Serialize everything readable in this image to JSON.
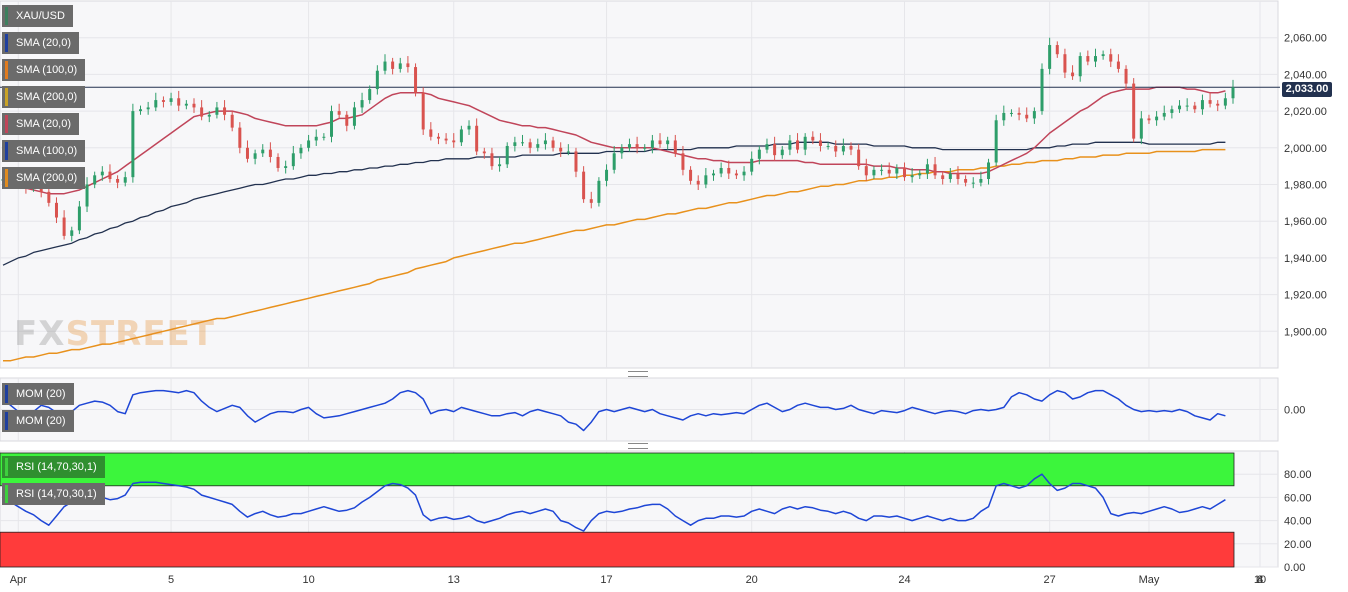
{
  "chart_data": [
    {
      "panel": "price",
      "type": "candlestick",
      "symbol": "XAU/USD",
      "ylim": [
        1880,
        2080
      ],
      "yticks": [
        1900,
        1920,
        1940,
        1960,
        1980,
        2000,
        2020,
        2040,
        2060
      ],
      "ytick_labels": [
        "1,900.00",
        "1,920.00",
        "1,940.00",
        "1,960.00",
        "1,980.00",
        "2,000.00",
        "2,020.00",
        "2,040.00",
        "2,060.00"
      ],
      "current_price": 2033.0,
      "current_price_label": "2,033.00",
      "x_labels": [
        "Apr",
        "5",
        "10",
        "13",
        "17",
        "20",
        "24",
        "27",
        "May",
        "4",
        "8",
        "10"
      ],
      "series": [
        {
          "name": "XAU/USD",
          "close": [
            1983,
            1985,
            1980,
            1978,
            1981,
            1976,
            1970,
            1962,
            1952,
            1955,
            1968,
            1980,
            1985,
            1987,
            1983,
            1981,
            1984,
            2020,
            2021,
            2022,
            2026,
            2025,
            2027,
            2023,
            2024,
            2022,
            2017,
            2018,
            2022,
            2018,
            2011,
            2000,
            1994,
            1997,
            1999,
            1995,
            1989,
            1990,
            1997,
            2000,
            2004,
            2006,
            2006,
            2020,
            2018,
            2012,
            2022,
            2026,
            2032,
            2042,
            2047,
            2043,
            2046,
            2044,
            2030,
            2010,
            2006,
            2005,
            2004,
            2003,
            2010,
            2012,
            1998,
            1997,
            1990,
            1991,
            2001,
            2003,
            2003,
            2000,
            2002,
            2004,
            2000,
            1998,
            1998,
            1987,
            1972,
            1970,
            1982,
            1988,
            1997,
            2000,
            2002,
            2000,
            2000,
            2004,
            2002,
            2004,
            1997,
            1988,
            1982,
            1980,
            1985,
            1986,
            1989,
            1986,
            1985,
            1987,
            1994,
            1999,
            2002,
            1996,
            1999,
            2004,
            1999,
            2006,
            2004,
            2001,
            2001,
            1998,
            2001,
            1999,
            1990,
            1985,
            1988,
            1988,
            1986,
            1989,
            1984,
            1985,
            1986,
            1991,
            1985,
            1983,
            1986,
            1983,
            1981,
            1981,
            1983,
            1992,
            2015,
            2019,
            2019,
            2018,
            2016,
            2020,
            2043,
            2056,
            2051,
            2041,
            2039,
            2050,
            2047,
            2050,
            2051,
            2047,
            2043,
            2035,
            2005,
            2016,
            2015,
            2017,
            2019,
            2021,
            2023,
            2023,
            2021,
            2026,
            2024,
            2023,
            2027,
            2033
          ]
        },
        {
          "name": "SMA (20,0)",
          "values": [
            1981,
            1980,
            1979,
            1978,
            1977,
            1976,
            1975,
            1975,
            1975,
            1976,
            1977,
            1979,
            1981,
            1983,
            1985,
            1987,
            1990,
            1993,
            1996,
            1999,
            2002,
            2005,
            2008,
            2011,
            2014,
            2017,
            2018,
            2019,
            2020,
            2020,
            2020,
            2019,
            2018,
            2016,
            2015,
            2014,
            2013,
            2012,
            2012,
            2012,
            2012,
            2012,
            2013,
            2014,
            2016,
            2016,
            2017,
            2018,
            2021,
            2024,
            2027,
            2029,
            2030,
            2030,
            2030,
            2030,
            2029,
            2027,
            2026,
            2025,
            2024,
            2023,
            2021,
            2019,
            2017,
            2015,
            2014,
            2013,
            2012,
            2012,
            2011,
            2011,
            2010,
            2009,
            2008,
            2007,
            2005,
            2003,
            2002,
            2001,
            2000,
            2000,
            2000,
            2000,
            2000,
            2000,
            1999,
            1998,
            1997,
            1996,
            1995,
            1994,
            1994,
            1993,
            1993,
            1992,
            1992,
            1992,
            1992,
            1993,
            1993,
            1993,
            1993,
            1993,
            1993,
            1992,
            1992,
            1991,
            1991,
            1991,
            1991,
            1991,
            1991,
            1991,
            1990,
            1990,
            1990,
            1989,
            1989,
            1988,
            1988,
            1988,
            1987,
            1987,
            1986,
            1986,
            1986,
            1986,
            1986,
            1987,
            1989,
            1991,
            1993,
            1995,
            1997,
            2000,
            2004,
            2008,
            2011,
            2014,
            2017,
            2020,
            2022,
            2025,
            2028,
            2030,
            2031,
            2032,
            2032,
            2032,
            2032,
            2033,
            2033,
            2033,
            2033,
            2032,
            2032,
            2031,
            2030,
            2030,
            2031
          ]
        },
        {
          "name": "SMA (100,0)",
          "values": [
            1936,
            1938,
            1940,
            1941,
            1943,
            1944,
            1945,
            1946,
            1947,
            1948,
            1950,
            1951,
            1953,
            1954,
            1956,
            1957,
            1959,
            1960,
            1962,
            1963,
            1965,
            1966,
            1968,
            1969,
            1970,
            1972,
            1973,
            1974,
            1975,
            1976,
            1977,
            1978,
            1979,
            1980,
            1980,
            1981,
            1982,
            1983,
            1983,
            1984,
            1985,
            1985,
            1986,
            1986,
            1987,
            1987,
            1988,
            1988,
            1989,
            1989,
            1990,
            1990,
            1991,
            1991,
            1992,
            1992,
            1993,
            1993,
            1994,
            1994,
            1994,
            1994,
            1995,
            1995,
            1995,
            1995,
            1995,
            1995,
            1996,
            1996,
            1996,
            1996,
            1996,
            1997,
            1997,
            1997,
            1997,
            1997,
            1997,
            1998,
            1998,
            1998,
            1998,
            1998,
            1998,
            1999,
            1999,
            1999,
            1999,
            1999,
            1999,
            2000,
            2000,
            2000,
            2000,
            2000,
            2001,
            2001,
            2001,
            2001,
            2001,
            2002,
            2002,
            2002,
            2003,
            2003,
            2003,
            2003,
            2003,
            2002,
            2002,
            2002,
            2002,
            2002,
            2001,
            2001,
            2001,
            2001,
            2001,
            2000,
            2000,
            2000,
            2000,
            1999,
            1999,
            1999,
            1999,
            1999,
            1999,
            1999,
            1999,
            1999,
            1999,
            1999,
            1999,
            2000,
            2000,
            2000,
            2001,
            2001,
            2002,
            2002,
            2002,
            2003,
            2003,
            2003,
            2003,
            2003,
            2003,
            2003,
            2002,
            2002,
            2002,
            2002,
            2002,
            2002,
            2002,
            2002,
            2002,
            2003,
            2003
          ]
        },
        {
          "name": "SMA (200,0)",
          "values": [
            1884,
            1884,
            1885,
            1886,
            1886,
            1887,
            1888,
            1888,
            1889,
            1890,
            1890,
            1891,
            1892,
            1893,
            1893,
            1894,
            1895,
            1896,
            1897,
            1898,
            1899,
            1900,
            1901,
            1902,
            1903,
            1904,
            1905,
            1906,
            1907,
            1907,
            1908,
            1909,
            1910,
            1911,
            1912,
            1913,
            1914,
            1915,
            1916,
            1917,
            1918,
            1919,
            1920,
            1921,
            1922,
            1923,
            1924,
            1925,
            1926,
            1928,
            1929,
            1930,
            1931,
            1932,
            1934,
            1935,
            1936,
            1937,
            1938,
            1940,
            1941,
            1942,
            1943,
            1944,
            1945,
            1946,
            1947,
            1948,
            1948,
            1949,
            1950,
            1951,
            1952,
            1953,
            1954,
            1955,
            1955,
            1956,
            1957,
            1958,
            1958,
            1959,
            1960,
            1961,
            1961,
            1962,
            1963,
            1964,
            1964,
            1965,
            1966,
            1967,
            1967,
            1968,
            1969,
            1970,
            1970,
            1971,
            1972,
            1973,
            1974,
            1974,
            1975,
            1976,
            1976,
            1977,
            1978,
            1979,
            1979,
            1980,
            1980,
            1981,
            1982,
            1982,
            1983,
            1983,
            1984,
            1984,
            1985,
            1985,
            1986,
            1986,
            1987,
            1987,
            1987,
            1988,
            1988,
            1988,
            1989,
            1989,
            1990,
            1990,
            1991,
            1991,
            1992,
            1992,
            1993,
            1993,
            1993,
            1994,
            1994,
            1995,
            1995,
            1995,
            1996,
            1996,
            1996,
            1997,
            1997,
            1997,
            1997,
            1998,
            1998,
            1998,
            1998,
            1998,
            1998,
            1999,
            1999,
            1999,
            1999
          ]
        }
      ]
    },
    {
      "panel": "momentum",
      "type": "line",
      "ylim": [
        -30,
        30
      ],
      "yticks": [
        0
      ],
      "ytick_labels": [
        "0.00"
      ],
      "series": [
        {
          "name": "MOM (20)",
          "values": [
            10,
            4,
            -2,
            -6,
            -2,
            4,
            2,
            -3,
            -8,
            -2,
            4,
            6,
            8,
            7,
            4,
            -2,
            -4,
            14,
            16,
            17,
            18,
            18,
            17,
            16,
            18,
            16,
            8,
            2,
            -2,
            1,
            4,
            2,
            -6,
            -12,
            -8,
            -4,
            -2,
            -2,
            -3,
            0,
            2,
            -4,
            -8,
            -7,
            -6,
            -4,
            -2,
            0,
            2,
            4,
            6,
            10,
            16,
            18,
            16,
            10,
            -4,
            -1,
            0,
            -2,
            2,
            0,
            -2,
            -4,
            -6,
            -6,
            -4,
            -3,
            -6,
            -2,
            0,
            -2,
            -4,
            -6,
            -12,
            -14,
            -20,
            -12,
            -2,
            0,
            -2,
            0,
            2,
            0,
            -2,
            0,
            -4,
            -6,
            -8,
            -10,
            -6,
            -4,
            -6,
            -4,
            -5,
            -4,
            -3,
            -4,
            0,
            4,
            6,
            2,
            -2,
            0,
            4,
            6,
            4,
            2,
            2,
            0,
            1,
            4,
            0,
            -2,
            -4,
            -1,
            -2,
            -3,
            -1,
            2,
            0,
            -2,
            -4,
            -2,
            -1,
            -2,
            -4,
            -1,
            0,
            -1,
            0,
            2,
            12,
            16,
            14,
            10,
            8,
            14,
            18,
            16,
            10,
            12,
            16,
            18,
            18,
            14,
            10,
            4,
            0,
            -2,
            -1,
            -2,
            -1,
            -2,
            0,
            -2,
            -6,
            -8,
            -10,
            -4,
            -6
          ]
        }
      ]
    },
    {
      "panel": "rsi",
      "type": "line",
      "ylim": [
        0,
        100
      ],
      "yticks": [
        0,
        20,
        40,
        60,
        80
      ],
      "ytick_labels": [
        "0.00",
        "20.00",
        "40.00",
        "60.00",
        "80.00"
      ],
      "overbought": 70,
      "oversold": 30,
      "series": [
        {
          "name": "RSI (14,70,30,1)",
          "values": [
            55,
            56,
            52,
            48,
            45,
            40,
            36,
            44,
            52,
            56,
            60,
            62,
            64,
            60,
            58,
            59,
            62,
            72,
            73,
            73,
            73,
            72,
            71,
            70,
            69,
            67,
            62,
            60,
            58,
            56,
            54,
            48,
            43,
            46,
            48,
            45,
            43,
            44,
            46,
            46,
            48,
            50,
            52,
            50,
            48,
            49,
            51,
            56,
            60,
            65,
            70,
            72,
            71,
            68,
            62,
            45,
            40,
            42,
            43,
            41,
            42,
            44,
            40,
            38,
            40,
            42,
            45,
            47,
            48,
            46,
            48,
            50,
            48,
            40,
            38,
            34,
            31,
            40,
            46,
            48,
            47,
            48,
            50,
            51,
            53,
            54,
            54,
            50,
            44,
            40,
            36,
            40,
            42,
            42,
            44,
            44,
            43,
            44,
            48,
            50,
            48,
            46,
            50,
            52,
            50,
            52,
            51,
            49,
            48,
            46,
            48,
            46,
            42,
            40,
            44,
            44,
            43,
            44,
            42,
            40,
            42,
            44,
            42,
            40,
            42,
            40,
            40,
            42,
            48,
            52,
            70,
            72,
            70,
            68,
            70,
            76,
            80,
            72,
            66,
            68,
            72,
            72,
            70,
            68,
            60,
            46,
            44,
            46,
            47,
            46,
            48,
            50,
            52,
            50,
            47,
            48,
            50,
            52,
            50,
            54,
            58
          ]
        }
      ]
    }
  ],
  "legend": {
    "price_items": [
      {
        "label": "XAU/USD",
        "color": "#3d7f5e"
      },
      {
        "label": "SMA (20,0)",
        "color": "#1f3f9e"
      },
      {
        "label": "SMA (100,0)",
        "color": "#e07b1f"
      },
      {
        "label": "SMA (200,0)",
        "color": "#c9a227"
      },
      {
        "label": "SMA (20,0)",
        "color": "#c0455a"
      },
      {
        "label": "SMA (100,0)",
        "color": "#1f3f9e"
      },
      {
        "label": "SMA (200,0)",
        "color": "#e08b1f"
      }
    ],
    "mom_items": [
      {
        "label": "MOM (20)",
        "color": "#1f3f9e"
      },
      {
        "label": "MOM (20)",
        "color": "#1f3f9e"
      }
    ],
    "rsi_items": [
      {
        "label": "RSI (14,70,30,1)",
        "color": "#3ecf3e"
      },
      {
        "label": "RSI (14,70,30,1)",
        "color": "#3ecf3e"
      }
    ]
  },
  "colors": {
    "bull": "#2e9e6a",
    "bear": "#d9534f",
    "sma20": "#c0455a",
    "sma100": "#22314f",
    "sma200": "#e8911c",
    "mom": "#1e46d6",
    "rsi": "#1e46d6",
    "rsi_overbought": "#3cf53c",
    "rsi_oversold": "#ff3b3b"
  },
  "watermark": {
    "part1": "FX",
    "part2": "STREET"
  }
}
